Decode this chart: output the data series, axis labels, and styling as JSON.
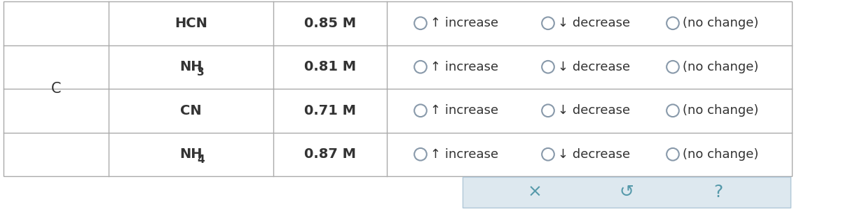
{
  "rows": [
    {
      "species": "HCN",
      "subscript": "",
      "concentration": "0.85 M"
    },
    {
      "species": "NH",
      "subscript": "3",
      "concentration": "0.81 M"
    },
    {
      "species": "CN",
      "subscript": "",
      "concentration": "0.71 M"
    },
    {
      "species": "NH",
      "subscript": "4",
      "concentration": "0.87 M"
    }
  ],
  "col_label": "C",
  "bg_color": "#ffffff",
  "border_color": "#aaaaaa",
  "text_color": "#333333",
  "radio_color": "#8899aa",
  "options": [
    "↑ increase",
    "↓ decrease",
    "(no change)"
  ],
  "font_size_species": 14,
  "font_size_conc": 14,
  "font_size_option": 13,
  "font_size_c": 15,
  "bottom_panel_color": "#dde8ef",
  "bottom_panel_border": "#b0c8d8",
  "bottom_panel_symbols": [
    "×",
    "↺",
    "?"
  ],
  "bottom_panel_sym_color": "#5599aa"
}
